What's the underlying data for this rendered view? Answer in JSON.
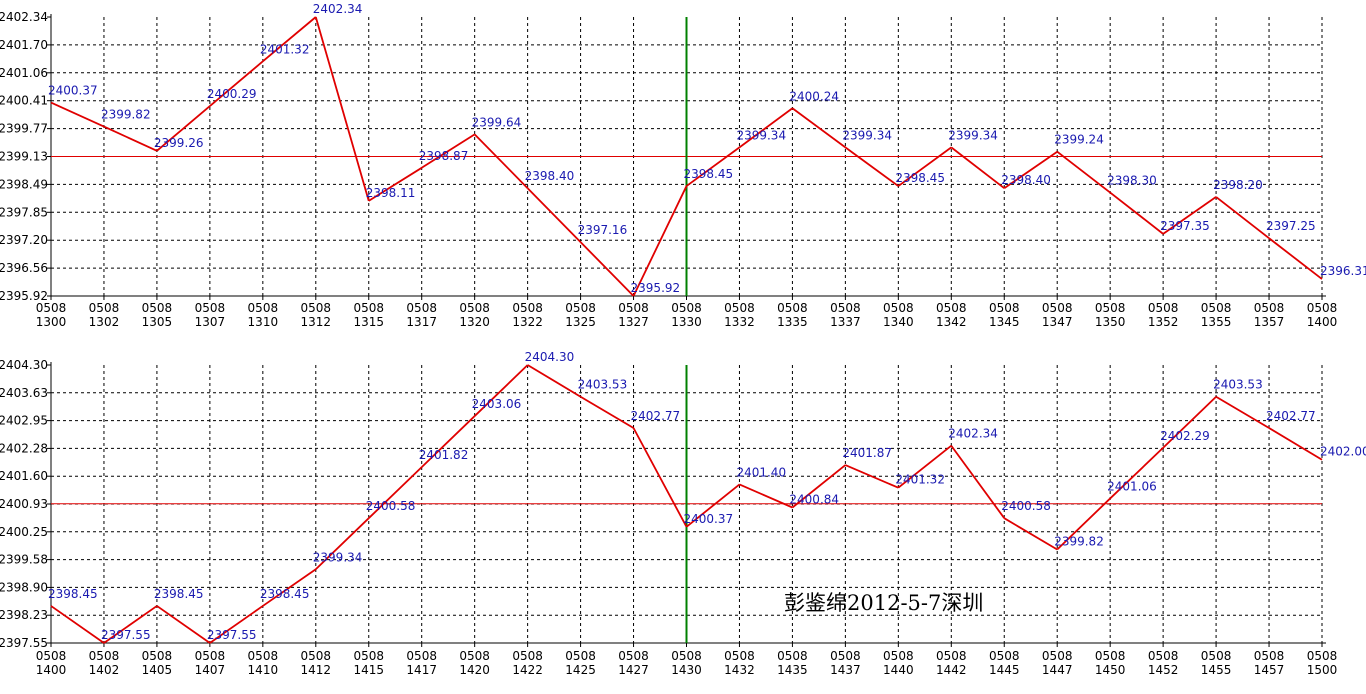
{
  "chart_data": [
    {
      "type": "line",
      "categories": [
        "0508 1300",
        "0508 1302",
        "0508 1305",
        "0508 1307",
        "0508 1310",
        "0508 1312",
        "0508 1315",
        "0508 1317",
        "0508 1320",
        "0508 1322",
        "0508 1325",
        "0508 1327",
        "0508 1330",
        "0508 1332",
        "0508 1335",
        "0508 1337",
        "0508 1340",
        "0508 1342",
        "0508 1345",
        "0508 1347",
        "0508 1350",
        "0508 1352",
        "0508 1355",
        "0508 1357",
        "0508 1400"
      ],
      "series": [
        {
          "values": [
            2400.37,
            2399.82,
            2399.26,
            2400.29,
            2401.32,
            2402.34,
            2398.11,
            2398.87,
            2399.64,
            2398.4,
            2397.16,
            2395.92,
            2398.45,
            2399.34,
            2400.24,
            2399.34,
            2398.45,
            2399.34,
            2398.4,
            2399.24,
            2398.3,
            2397.35,
            2398.2,
            2397.25,
            2396.31
          ],
          "color": "#e00000"
        }
      ],
      "point_labels": [
        "2400.37",
        "2399.82",
        "2399.26",
        "2400.29",
        "2401.32",
        "2402.34",
        "2398.11",
        "2398.87",
        "2399.64",
        "2398.40",
        "2397.16",
        "2395.92",
        "2398.45",
        "2399.34",
        "2400.24",
        "2399.34",
        "2398.45",
        "2399.34",
        "2398.40",
        "2399.24",
        "2398.30",
        "2397.35",
        "2398.20",
        "2397.25",
        "2396.31"
      ],
      "yticks": [
        "2402.34",
        "2401.70",
        "2401.06",
        "2400.41",
        "2399.77",
        "2399.13",
        "2398.49",
        "2397.85",
        "2397.20",
        "2396.56",
        "2395.92"
      ],
      "ylim": [
        2395.92,
        2402.34
      ],
      "reference_line": 2399.13,
      "marker_category": "0508 1330",
      "grid": true
    },
    {
      "type": "line",
      "categories": [
        "0508 1400",
        "0508 1402",
        "0508 1405",
        "0508 1407",
        "0508 1410",
        "0508 1412",
        "0508 1415",
        "0508 1417",
        "0508 1420",
        "0508 1422",
        "0508 1425",
        "0508 1427",
        "0508 1430",
        "0508 1432",
        "0508 1435",
        "0508 1437",
        "0508 1440",
        "0508 1442",
        "0508 1445",
        "0508 1447",
        "0508 1450",
        "0508 1452",
        "0508 1455",
        "0508 1457",
        "0508 1500"
      ],
      "series": [
        {
          "values": [
            2398.45,
            2397.55,
            2398.45,
            2397.55,
            2398.45,
            2399.34,
            2400.58,
            2401.82,
            2403.06,
            2404.3,
            2403.53,
            2402.77,
            2400.37,
            2401.4,
            2400.84,
            2401.87,
            2401.32,
            2402.34,
            2400.58,
            2399.82,
            2401.06,
            2402.29,
            2403.53,
            2402.77,
            2402.0
          ],
          "color": "#e00000"
        }
      ],
      "point_labels": [
        "2398.45",
        "2397.55",
        "2398.45",
        "2397.55",
        "2398.45",
        "2399.34",
        "2400.58",
        "2401.82",
        "2403.06",
        "2404.30",
        "2403.53",
        "2402.77",
        "2400.37",
        "2401.40",
        "2400.84",
        "2401.87",
        "2401.32",
        "2402.34",
        "2400.58",
        "2399.82",
        "2401.06",
        "2402.29",
        "2403.53",
        "2402.77",
        "2402.00"
      ],
      "yticks": [
        "2404.30",
        "2403.63",
        "2402.95",
        "2402.28",
        "2401.60",
        "2400.93",
        "2400.25",
        "2399.58",
        "2398.90",
        "2398.23",
        "2397.55"
      ],
      "ylim": [
        2397.55,
        2404.3
      ],
      "reference_line": 2400.93,
      "marker_category": "0508 1430",
      "grid": true
    }
  ],
  "watermark": "彭鉴绵2012-5-7深圳",
  "colors": {
    "line": "#e00000",
    "reference": "#e00000",
    "marker": "#008000",
    "grid": "#000000",
    "labels": "#1a1ab0"
  }
}
